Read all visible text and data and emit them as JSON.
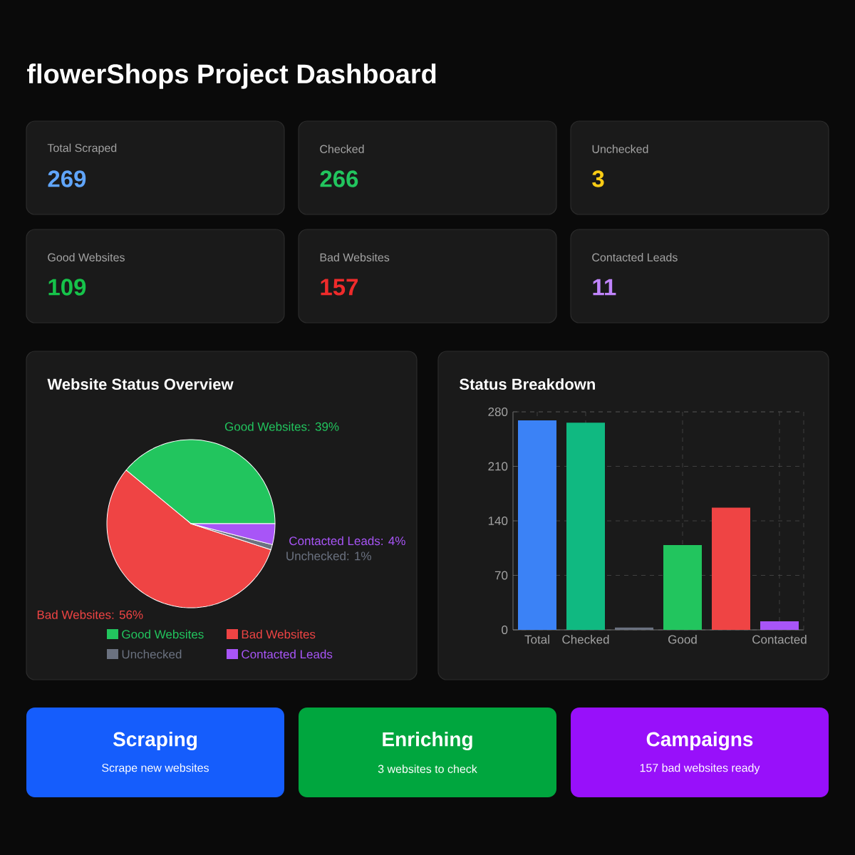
{
  "chart_data": [
    {
      "type": "other",
      "title": "flowerShops Project Dashboard"
    },
    {
      "type": "other",
      "title": "Total Scraped",
      "annotations": [
        "269"
      ],
      "color": "#60a5fa"
    },
    {
      "type": "other",
      "title": "Checked",
      "annotations": [
        "266"
      ],
      "color": "#22c55e"
    },
    {
      "type": "other",
      "title": "Unchecked",
      "annotations": [
        "3"
      ],
      "color": "#facc15"
    },
    {
      "type": "other",
      "title": "Good Websites",
      "annotations": [
        "109"
      ],
      "color": "#16c34a"
    },
    {
      "type": "other",
      "title": "Bad Websites",
      "annotations": [
        "157"
      ],
      "color": "#ef2b2b"
    },
    {
      "type": "other",
      "title": "Contacted Leads",
      "annotations": [
        "11"
      ],
      "color": "#c084fc"
    },
    {
      "type": "pie",
      "title": "Website Status Overview",
      "categories": [
        "Good Websites",
        "Bad Websites",
        "Unchecked",
        "Contacted Leads"
      ],
      "values": [
        39,
        56,
        1,
        4
      ],
      "colors": [
        "#22c55e",
        "#ef4444",
        "#6b7280",
        "#a855f7"
      ],
      "value_labels": [
        "Good Websites: 39%",
        "Bad Websites: 56%",
        "Unchecked: 1%",
        "Contacted Leads: 4%"
      ],
      "legend": "bottom"
    },
    {
      "type": "bar",
      "title": "Status Breakdown",
      "categories": [
        "Total",
        "Checked",
        null,
        "Good",
        null,
        "Contacted"
      ],
      "values": [
        269,
        266,
        3,
        109,
        157,
        11
      ],
      "colors": [
        "#3b82f6",
        "#10b981",
        "#6b7280",
        "#22c55e",
        "#ef4444",
        "#a855f7"
      ],
      "ylim": [
        0,
        280
      ],
      "yticks": [
        0,
        70,
        140,
        210,
        280
      ],
      "grid": true
    },
    {
      "type": "other",
      "title": "Scraping",
      "subtitle": "Scrape new websites",
      "color": "#155dfc"
    },
    {
      "type": "other",
      "title": "Enriching",
      "subtitle": "3 websites to check",
      "color": "#00a63e"
    },
    {
      "type": "other",
      "title": "Campaigns",
      "subtitle": "157 bad websites ready",
      "color": "#9810fa"
    }
  ]
}
